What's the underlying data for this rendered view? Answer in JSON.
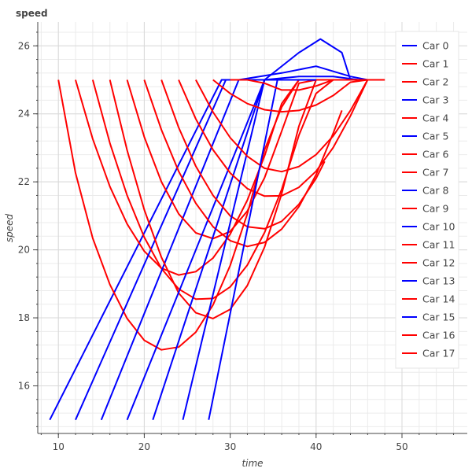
{
  "chart_data": {
    "type": "line",
    "title": "speed",
    "xlabel": "time",
    "ylabel": "speed",
    "xlim": [
      7.6,
      57.6
    ],
    "ylim": [
      14.6,
      26.7
    ],
    "xticks": [
      10,
      20,
      30,
      40,
      50
    ],
    "yticks": [
      16,
      18,
      20,
      22,
      24,
      26
    ],
    "grid": true,
    "legend_position": "top-right",
    "colors": {
      "Car 0": "#0000ff",
      "Car 1": "#ff0000"
    },
    "series": [
      {
        "name": "Car 0",
        "color": "#0000ff",
        "x": [
          9.0,
          29.0,
          46.5
        ],
        "y": [
          15.0,
          25.0,
          25.0
        ]
      },
      {
        "name": "Car 1",
        "color": "#ff0000",
        "x": [
          10.0,
          12.0,
          14.0,
          16.0,
          18.0,
          20.0,
          22.0,
          24.0,
          26.0,
          28.0,
          30.0,
          32.0,
          34.0,
          36.0,
          38.0,
          40.0,
          42.0,
          44.0,
          46.0,
          47.5
        ],
        "y": [
          25.0,
          22.26,
          20.34,
          18.98,
          17.98,
          17.34,
          17.06,
          17.14,
          17.58,
          18.38,
          19.54,
          21.06,
          22.94,
          24.2,
          25.0,
          25.0,
          25.0,
          25.0,
          25.0,
          25.0
        ]
      },
      {
        "name": "Car 2",
        "color": "#ff0000",
        "x": [
          12.0,
          14.0,
          16.0,
          18.0,
          20.0,
          22.0,
          24.0,
          26.0,
          28.0,
          30.0,
          32.0,
          34.0,
          36.0,
          38.0,
          40.0,
          42.0,
          44.0,
          46.0,
          47.0
        ],
        "y": [
          25.0,
          23.26,
          21.86,
          20.76,
          19.96,
          19.46,
          19.26,
          19.36,
          19.76,
          20.46,
          21.46,
          22.76,
          24.3,
          25.0,
          25.0,
          25.0,
          25.0,
          25.0,
          25.0
        ]
      },
      {
        "name": "Car 3",
        "color": "#0000ff",
        "x": [
          12.0,
          29.5,
          30.0,
          46.0
        ],
        "y": [
          15.0,
          25.0,
          25.0,
          25.0
        ]
      },
      {
        "name": "Car 4",
        "color": "#ff0000",
        "x": [
          14.0,
          16.0,
          18.0,
          20.0,
          22.0,
          24.0,
          26.0,
          28.0,
          30.0,
          32.0,
          34.0,
          36.0,
          38.0,
          40.0,
          42.0,
          44.0,
          45.0
        ],
        "y": [
          25.0,
          23.14,
          21.6,
          20.37,
          19.45,
          18.85,
          18.55,
          18.57,
          18.91,
          19.55,
          20.51,
          21.78,
          23.37,
          24.6,
          25.0,
          25.0,
          25.0
        ]
      },
      {
        "name": "Car 5",
        "color": "#0000ff",
        "x": [
          15.0,
          31.0,
          36.0,
          40.0,
          44.0,
          46.0
        ],
        "y": [
          15.0,
          25.0,
          25.2,
          25.4,
          25.1,
          25.0
        ]
      },
      {
        "name": "Car 6",
        "color": "#ff0000",
        "x": [
          16.0,
          18.0,
          20.0,
          22.0,
          24.0,
          26.0,
          28.0,
          30.0,
          32.0,
          34.0,
          36.0,
          38.0,
          40.0,
          42.0,
          44.0
        ],
        "y": [
          25.0,
          22.93,
          21.18,
          19.78,
          18.73,
          18.15,
          17.98,
          18.25,
          18.95,
          20.08,
          21.65,
          23.64,
          25.0,
          25.0,
          25.0
        ]
      },
      {
        "name": "Car 7",
        "color": "#ff0000",
        "x": [
          18.0,
          20.0,
          22.0,
          24.0,
          26.0,
          28.0,
          30.0,
          32.0,
          34.0,
          36.0,
          38.0,
          40.0,
          42.0,
          43.0
        ],
        "y": [
          25.0,
          23.32,
          22.0,
          21.06,
          20.5,
          20.33,
          20.54,
          21.14,
          22.12,
          23.49,
          24.9,
          25.0,
          25.0,
          25.0
        ]
      },
      {
        "name": "Car 8",
        "color": "#0000ff",
        "x": [
          18.0,
          34.0,
          38.0,
          42.0,
          45.0
        ],
        "y": [
          15.0,
          25.0,
          25.1,
          25.1,
          25.0
        ]
      },
      {
        "name": "Car 9",
        "color": "#ff0000",
        "x": [
          20.0,
          22.0,
          24.0,
          26.0,
          28.0,
          30.0,
          32.0,
          34.0,
          36.0,
          38.0,
          40.0,
          42.0,
          43.0
        ],
        "y": [
          25.0,
          23.53,
          22.31,
          21.37,
          20.68,
          20.27,
          20.1,
          20.22,
          20.61,
          21.27,
          22.21,
          23.43,
          24.1
        ]
      },
      {
        "name": "Car 10",
        "color": "#0000ff",
        "x": [
          21.0,
          34.0,
          38.0,
          40.5,
          43.0,
          44.0
        ],
        "y": [
          15.0,
          25.0,
          25.8,
          26.2,
          25.8,
          25.0
        ]
      },
      {
        "name": "Car 11",
        "color": "#ff0000",
        "x": [
          22.0,
          24.0,
          26.0,
          28.0,
          30.0,
          32.0,
          34.0,
          36.0,
          38.0,
          40.0,
          41.0
        ],
        "y": [
          25.0,
          23.6,
          22.46,
          21.6,
          21.0,
          20.68,
          20.62,
          20.84,
          21.34,
          22.1,
          22.6
        ]
      },
      {
        "name": "Car 12",
        "color": "#ff0000",
        "x": [
          24.0,
          26.0,
          28.0,
          30.0,
          32.0,
          34.0,
          36.0,
          38.0,
          40.0,
          42.0,
          44.0,
          46.0
        ],
        "y": [
          25.0,
          23.85,
          22.94,
          22.26,
          21.8,
          21.58,
          21.59,
          21.84,
          22.31,
          23.01,
          23.94,
          25.0
        ]
      },
      {
        "name": "Car 13",
        "color": "#0000ff",
        "x": [
          24.5,
          34.0,
          38.0,
          40.0
        ],
        "y": [
          15.0,
          25.0,
          25.0,
          25.0
        ]
      },
      {
        "name": "Car 14",
        "color": "#ff0000",
        "x": [
          26.0,
          28.0,
          30.0,
          32.0,
          34.0,
          36.0,
          38.0,
          40.0,
          42.0,
          44.0,
          46.0,
          47.0
        ],
        "y": [
          25.0,
          24.05,
          23.3,
          22.75,
          22.4,
          22.3,
          22.45,
          22.8,
          23.35,
          24.1,
          25.0,
          25.0
        ]
      },
      {
        "name": "Car 15",
        "color": "#0000ff",
        "x": [
          27.5,
          35.5,
          38.0,
          40.0
        ],
        "y": [
          15.0,
          25.0,
          25.0,
          25.0
        ]
      },
      {
        "name": "Car 16",
        "color": "#ff0000",
        "x": [
          28.0,
          30.0,
          32.0,
          34.0,
          36.0,
          38.0,
          40.0,
          42.0,
          44.0,
          46.0,
          48.0
        ],
        "y": [
          25.0,
          24.6,
          24.3,
          24.12,
          24.06,
          24.1,
          24.26,
          24.54,
          24.93,
          25.0,
          25.0
        ]
      },
      {
        "name": "Car 17",
        "color": "#ff0000",
        "x": [
          30.0,
          32.0,
          34.0,
          36.0,
          38.0,
          40.0,
          42.0,
          44.0,
          46.0,
          47.0
        ],
        "y": [
          25.0,
          25.0,
          24.9,
          24.7,
          24.7,
          24.82,
          25.0,
          25.0,
          25.0,
          25.0
        ]
      }
    ]
  }
}
